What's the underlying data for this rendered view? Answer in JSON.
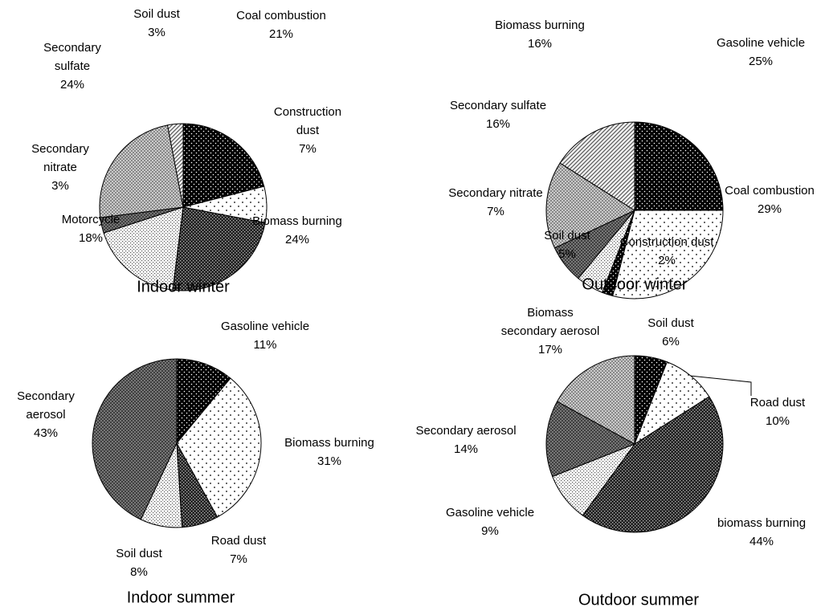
{
  "chart_data": [
    {
      "type": "pie",
      "title": "Indoor winter",
      "categories": [
        "Coal combustion",
        "Construction\ndust",
        "Biomass burning",
        "Motorcycle",
        "Secondary\nnitrate",
        "Secondary\nsulfate",
        "Soil dust"
      ],
      "values": [
        21,
        7,
        24,
        18,
        3,
        24,
        3
      ],
      "value_labels": [
        "21%",
        "7%",
        "24%",
        "18%",
        "3%",
        "24%",
        "3%"
      ]
    },
    {
      "type": "pie",
      "title": "Outdoor winter",
      "categories": [
        "Gasoline vehicle",
        "Coal combustion",
        "Construction dust",
        "Soil dust",
        "Secondary nitrate",
        "Secondary sulfate",
        "Biomass burning"
      ],
      "values": [
        25,
        29,
        2,
        5,
        7,
        16,
        16
      ],
      "value_labels": [
        "25%",
        "29%",
        "2%",
        "5%",
        "7%",
        "16%",
        "16%"
      ]
    },
    {
      "type": "pie",
      "title": "Indoor summer",
      "categories": [
        "Gasoline vehicle",
        "Biomass burning",
        "Road dust",
        "Soil dust",
        "Secondary\naerosol"
      ],
      "values": [
        11,
        31,
        7,
        8,
        43
      ],
      "value_labels": [
        "11%",
        "31%",
        "7%",
        "8%",
        "43%"
      ]
    },
    {
      "type": "pie",
      "title": "Outdoor summer",
      "categories": [
        "Soil dust",
        "Road dust",
        "biomass burning",
        "Gasoline vehicle",
        "Secondary aerosol",
        "Biomass\nsecondary aerosol"
      ],
      "values": [
        6,
        10,
        44,
        9,
        14,
        17
      ],
      "value_labels": [
        "6%",
        "10%",
        "44%",
        "9%",
        "14%",
        "17%"
      ]
    }
  ]
}
